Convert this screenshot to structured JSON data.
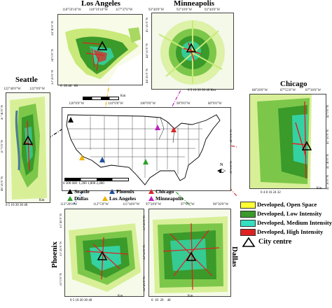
{
  "cities": {
    "los_angeles": {
      "title": "Los Angeles",
      "lon_ticks": [
        "118°59'10\"W",
        "118°19'10\"W",
        "117°37'0\"W"
      ],
      "lat_ticks": [
        "34°40'0\"N",
        "34°0'0\"N",
        "33°20'0\"N"
      ],
      "scale_label": "Km",
      "scale_ticks": [
        "0",
        "20",
        "40",
        "80"
      ]
    },
    "minneapolis": {
      "title": "Minneapolis",
      "lon_ticks": [
        "93°40'0\"W",
        "93°10'0\"W",
        "92°40'0\"W"
      ],
      "lat_ticks": [
        "45°20'0\"N",
        "44°50'0\"N",
        "44°20'0\"N"
      ],
      "scale_label": "Km",
      "scale_ticks": [
        "0",
        "5",
        "10",
        "20",
        "30",
        "40"
      ]
    },
    "seattle": {
      "title": "Seattle",
      "lon_ticks": [
        "122°40'0\"W",
        "122°0'0\"W"
      ],
      "lat_ticks": [
        "47°40'0\"N",
        "47°0'0\"N",
        "46°20'0\"N"
      ],
      "scale_label": "Km",
      "scale_ticks": [
        "0",
        "5",
        "10",
        "20",
        "30",
        "40"
      ]
    },
    "chicago": {
      "title": "Chicago",
      "lon_ticks": [
        "88°20'0\"W",
        "87°55'0\"W",
        "87°30'0\"W"
      ],
      "lat_ticks": [
        "42°0'0\"N",
        "41°50'0\"N",
        "41°40'0\"N",
        "41°30'0\"N"
      ],
      "scale_label": "Km",
      "scale_ticks": [
        "0",
        "4",
        "8",
        "16",
        "24",
        "32"
      ]
    },
    "phoenix": {
      "title": "Phoenix",
      "lon_ticks": [
        "112°20'0\"W",
        "112°5'0\"W",
        "111°40'0\"W"
      ],
      "lat_ticks": [
        "33°40'0\"N",
        "33°20'0\"N",
        "33°0'0\"N"
      ],
      "scale_label": "Km",
      "scale_ticks": [
        "0",
        "5",
        "10",
        "20",
        "30",
        "40"
      ]
    },
    "dallas": {
      "title": "Dallas",
      "lon_ticks": [
        "97°20'0\"W",
        "97°0'0\"W",
        "96°30'0\"W"
      ],
      "lat_ticks": [
        "33°20'0\"N",
        "32°50'0\"N",
        "32°20'0\"N"
      ],
      "scale_label": "Km",
      "scale_ticks": [
        "0",
        "10",
        "20",
        "40"
      ]
    }
  },
  "usa_map": {
    "lon_ticks": [
      "120°0'0\"W",
      "110°0'0\"W",
      "100°0'0\"W",
      "90°0'0\"W",
      "80°0'0\"W",
      "70°0'0\"W"
    ],
    "lat_ticks": [
      "40°0'0\"N",
      "30°0'0\"N"
    ],
    "scale_label": "Km",
    "scale_ticks": [
      "0",
      "300",
      "600",
      "1,200",
      "1,800",
      "2,400"
    ],
    "north_label": "N"
  },
  "city_markers": [
    {
      "name": "Seattle",
      "color": "#000000"
    },
    {
      "name": "Phoenix",
      "color": "#1f4e9c"
    },
    {
      "name": "Chicago",
      "color": "#d62728"
    },
    {
      "name": "Dallas",
      "color": "#2ca02c"
    },
    {
      "name": "Los Angeles",
      "color": "#f0b000"
    },
    {
      "name": "Minneapolis",
      "color": "#c020c0"
    }
  ],
  "legend": {
    "items": [
      {
        "label": "Developed, Open Space",
        "color": "#ffff33"
      },
      {
        "label": "Developed, Low Intensity",
        "color": "#3a9a2a"
      },
      {
        "label": "Developed, Medium Intensity",
        "color": "#33e0c0"
      },
      {
        "label": "Developed, High Intensity",
        "color": "#e02020"
      }
    ],
    "city_centre_label": "City centre"
  }
}
